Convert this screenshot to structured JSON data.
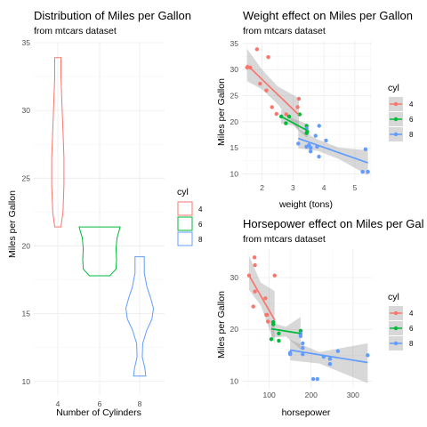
{
  "colors": {
    "cyl4": "#F8766D",
    "cyl6": "#00BA38",
    "cyl8": "#619CFF",
    "band": "#999999"
  },
  "chart_data": [
    {
      "type": "violin",
      "title": "Distribution of Miles per Gallon",
      "subtitle": "from mtcars dataset",
      "xlabel": "Number of Cylinders",
      "ylabel": "Miles per Gallon",
      "categories": [
        "4",
        "6",
        "8"
      ],
      "ylim": [
        9.0,
        35.0
      ],
      "yticks": [
        10,
        15,
        20,
        25,
        30,
        35
      ],
      "legend_title": "cyl",
      "legend_labels": [
        "4",
        "6",
        "8"
      ],
      "series": [
        {
          "name": "4",
          "profile": [
            [
              21.4,
              0.0
            ],
            [
              21.4,
              0.06
            ],
            [
              22.5,
              0.1
            ],
            [
              24.5,
              0.12
            ],
            [
              26.5,
              0.12
            ],
            [
              28.5,
              0.1
            ],
            [
              30.5,
              0.08
            ],
            [
              32.5,
              0.06
            ],
            [
              33.9,
              0.06
            ],
            [
              33.9,
              0.0
            ]
          ]
        },
        {
          "name": "6",
          "profile": [
            [
              17.8,
              0.0
            ],
            [
              17.8,
              0.2
            ],
            [
              18.3,
              0.32
            ],
            [
              19.0,
              0.33
            ],
            [
              19.8,
              0.32
            ],
            [
              20.6,
              0.34
            ],
            [
              21.1,
              0.38
            ],
            [
              21.4,
              0.4
            ],
            [
              21.4,
              0.0
            ]
          ]
        },
        {
          "name": "8",
          "profile": [
            [
              10.4,
              0.0
            ],
            [
              10.4,
              0.12
            ],
            [
              11.0,
              0.1
            ],
            [
              11.8,
              0.05
            ],
            [
              12.8,
              0.06
            ],
            [
              13.8,
              0.14
            ],
            [
              14.6,
              0.24
            ],
            [
              15.4,
              0.27
            ],
            [
              16.2,
              0.21
            ],
            [
              17.0,
              0.14
            ],
            [
              18.0,
              0.09
            ],
            [
              19.2,
              0.09
            ],
            [
              19.2,
              0.0
            ]
          ]
        }
      ]
    },
    {
      "type": "scatter",
      "title": "Weight effect on Miles per Gallon",
      "subtitle": "from mtcars dataset",
      "xlabel": "weight (tons)",
      "ylabel": "Miles per Gallon",
      "xlim": [
        1.35,
        5.55
      ],
      "ylim": [
        8.7,
        35.5
      ],
      "xticks": [
        2,
        3,
        4,
        5
      ],
      "yticks": [
        10,
        15,
        20,
        25,
        30,
        35
      ],
      "legend_title": "cyl",
      "legend_labels": [
        "4",
        "6",
        "8"
      ],
      "series": [
        {
          "name": "4",
          "points": [
            [
              2.32,
              22.8
            ],
            [
              3.19,
              24.4
            ],
            [
              3.15,
              22.8
            ],
            [
              2.2,
              32.4
            ],
            [
              1.615,
              30.4
            ],
            [
              1.835,
              33.9
            ],
            [
              2.465,
              21.5
            ],
            [
              1.935,
              27.3
            ],
            [
              2.14,
              26.0
            ],
            [
              1.513,
              30.4
            ],
            [
              2.78,
              21.4
            ]
          ],
          "fit": {
            "x": [
              1.513,
              3.19
            ],
            "y": [
              30.9,
              21.3
            ]
          },
          "band": [
            [
              1.513,
              34.0,
              27.8
            ],
            [
              2.0,
              30.0,
              26.2
            ],
            [
              2.5,
              26.8,
              23.4
            ],
            [
              3.19,
              24.5,
              18.2
            ]
          ]
        },
        {
          "name": "6",
          "points": [
            [
              2.62,
              21.0
            ],
            [
              2.875,
              21.0
            ],
            [
              3.215,
              21.4
            ],
            [
              3.46,
              18.1
            ],
            [
              3.44,
              19.2
            ],
            [
              3.44,
              17.8
            ],
            [
              2.77,
              19.7
            ]
          ],
          "fit": {
            "x": [
              2.62,
              3.46
            ],
            "y": [
              21.0,
              18.3
            ]
          },
          "band": [
            [
              2.62,
              22.4,
              19.6
            ],
            [
              3.0,
              20.6,
              19.3
            ],
            [
              3.46,
              19.6,
              16.9
            ]
          ]
        },
        {
          "name": "8",
          "points": [
            [
              3.44,
              18.7
            ],
            [
              3.57,
              14.3
            ],
            [
              4.07,
              16.4
            ],
            [
              3.73,
              17.3
            ],
            [
              3.78,
              15.2
            ],
            [
              5.25,
              10.4
            ],
            [
              5.424,
              10.4
            ],
            [
              5.345,
              14.7
            ],
            [
              3.52,
              15.5
            ],
            [
              3.435,
              15.2
            ],
            [
              3.84,
              13.3
            ],
            [
              3.845,
              19.2
            ],
            [
              3.17,
              15.8
            ],
            [
              3.57,
              15.0
            ]
          ],
          "fit": {
            "x": [
              3.17,
              5.424
            ],
            "y": [
              16.8,
              12.1
            ]
          },
          "band": [
            [
              3.17,
              18.6,
              14.9
            ],
            [
              3.8,
              16.6,
              14.4
            ],
            [
              4.5,
              15.0,
              12.8
            ],
            [
              5.424,
              14.5,
              9.7
            ]
          ]
        }
      ]
    },
    {
      "type": "scatter",
      "title": "Horsepower effect on Miles per Gal",
      "subtitle": "from mtcars dataset",
      "xlabel": "horsepower",
      "ylabel": "Miles per Gallon",
      "xlim": [
        35,
        345
      ],
      "ylim": [
        8.7,
        35.5
      ],
      "xticks": [
        100,
        200,
        300
      ],
      "yticks": [
        10,
        20,
        30
      ],
      "legend_title": "cyl",
      "legend_labels": [
        "4",
        "6",
        "8"
      ],
      "series": [
        {
          "name": "4",
          "points": [
            [
              93,
              22.8
            ],
            [
              62,
              24.4
            ],
            [
              95,
              22.8
            ],
            [
              66,
              32.4
            ],
            [
              52,
              30.4
            ],
            [
              65,
              33.9
            ],
            [
              97,
              21.5
            ],
            [
              66,
              27.3
            ],
            [
              91,
              26.0
            ],
            [
              113,
              30.4
            ],
            [
              109,
              21.4
            ]
          ],
          "fit": {
            "x": [
              52,
              113
            ],
            "y": [
              30.4,
              21.8
            ]
          },
          "band": [
            [
              52,
              34.2,
              27.6
            ],
            [
              80,
              29.0,
              24.6
            ],
            [
              113,
              27.4,
              17.2
            ]
          ]
        },
        {
          "name": "6",
          "points": [
            [
              110,
              21.0
            ],
            [
              110,
              21.0
            ],
            [
              110,
              21.4
            ],
            [
              105,
              18.1
            ],
            [
              123,
              19.2
            ],
            [
              123,
              17.8
            ],
            [
              175,
              19.7
            ]
          ],
          "fit": {
            "x": [
              105,
              175
            ],
            "y": [
              20.1,
              19.2
            ]
          },
          "band": [
            [
              105,
              21.3,
              18.4
            ],
            [
              140,
              20.5,
              18.6
            ],
            [
              175,
              22.4,
              16.1
            ]
          ]
        },
        {
          "name": "8",
          "points": [
            [
              175,
              18.7
            ],
            [
              245,
              14.3
            ],
            [
              180,
              16.4
            ],
            [
              180,
              17.3
            ],
            [
              180,
              15.2
            ],
            [
              205,
              10.4
            ],
            [
              215,
              10.4
            ],
            [
              230,
              14.7
            ],
            [
              150,
              15.5
            ],
            [
              150,
              15.2
            ],
            [
              245,
              13.3
            ],
            [
              175,
              19.2
            ],
            [
              264,
              15.8
            ],
            [
              335,
              15.0
            ]
          ],
          "fit": {
            "x": [
              150,
              335
            ],
            "y": [
              16.0,
              13.6
            ]
          },
          "band": [
            [
              150,
              18.0,
              14.0
            ],
            [
              220,
              15.6,
              13.4
            ],
            [
              335,
              17.3,
              9.6
            ]
          ]
        }
      ]
    }
  ]
}
